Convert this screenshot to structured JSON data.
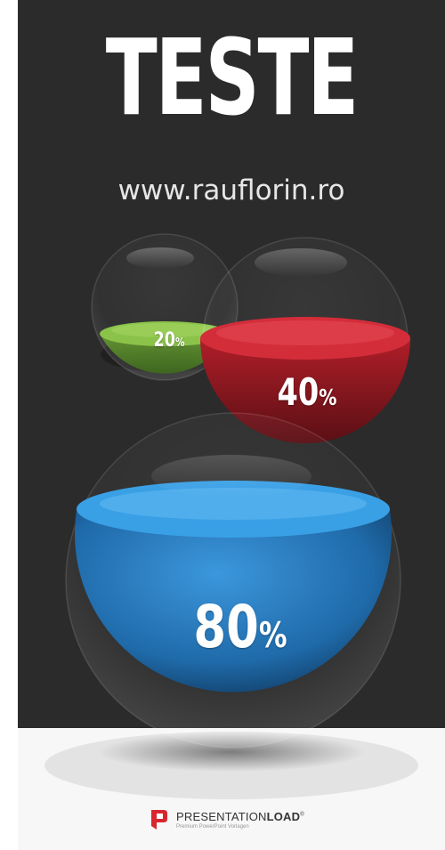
{
  "title": "TESTE",
  "url": "www.rauflorin.ro",
  "spheres": [
    {
      "id": "green",
      "value": 20,
      "label": "20",
      "unit": "%",
      "color": "#7ab648"
    },
    {
      "id": "red",
      "value": 40,
      "label": "40",
      "unit": "%",
      "color": "#c2202d"
    },
    {
      "id": "blue",
      "value": 80,
      "label": "80",
      "unit": "%",
      "color": "#2a7fc4"
    }
  ],
  "brand": {
    "name_regular": "PRESENTATION",
    "name_bold": "LOAD",
    "registered": "®",
    "tagline": "Premium PowerPoint Vorlagen",
    "logo_color": "#d8262e"
  }
}
